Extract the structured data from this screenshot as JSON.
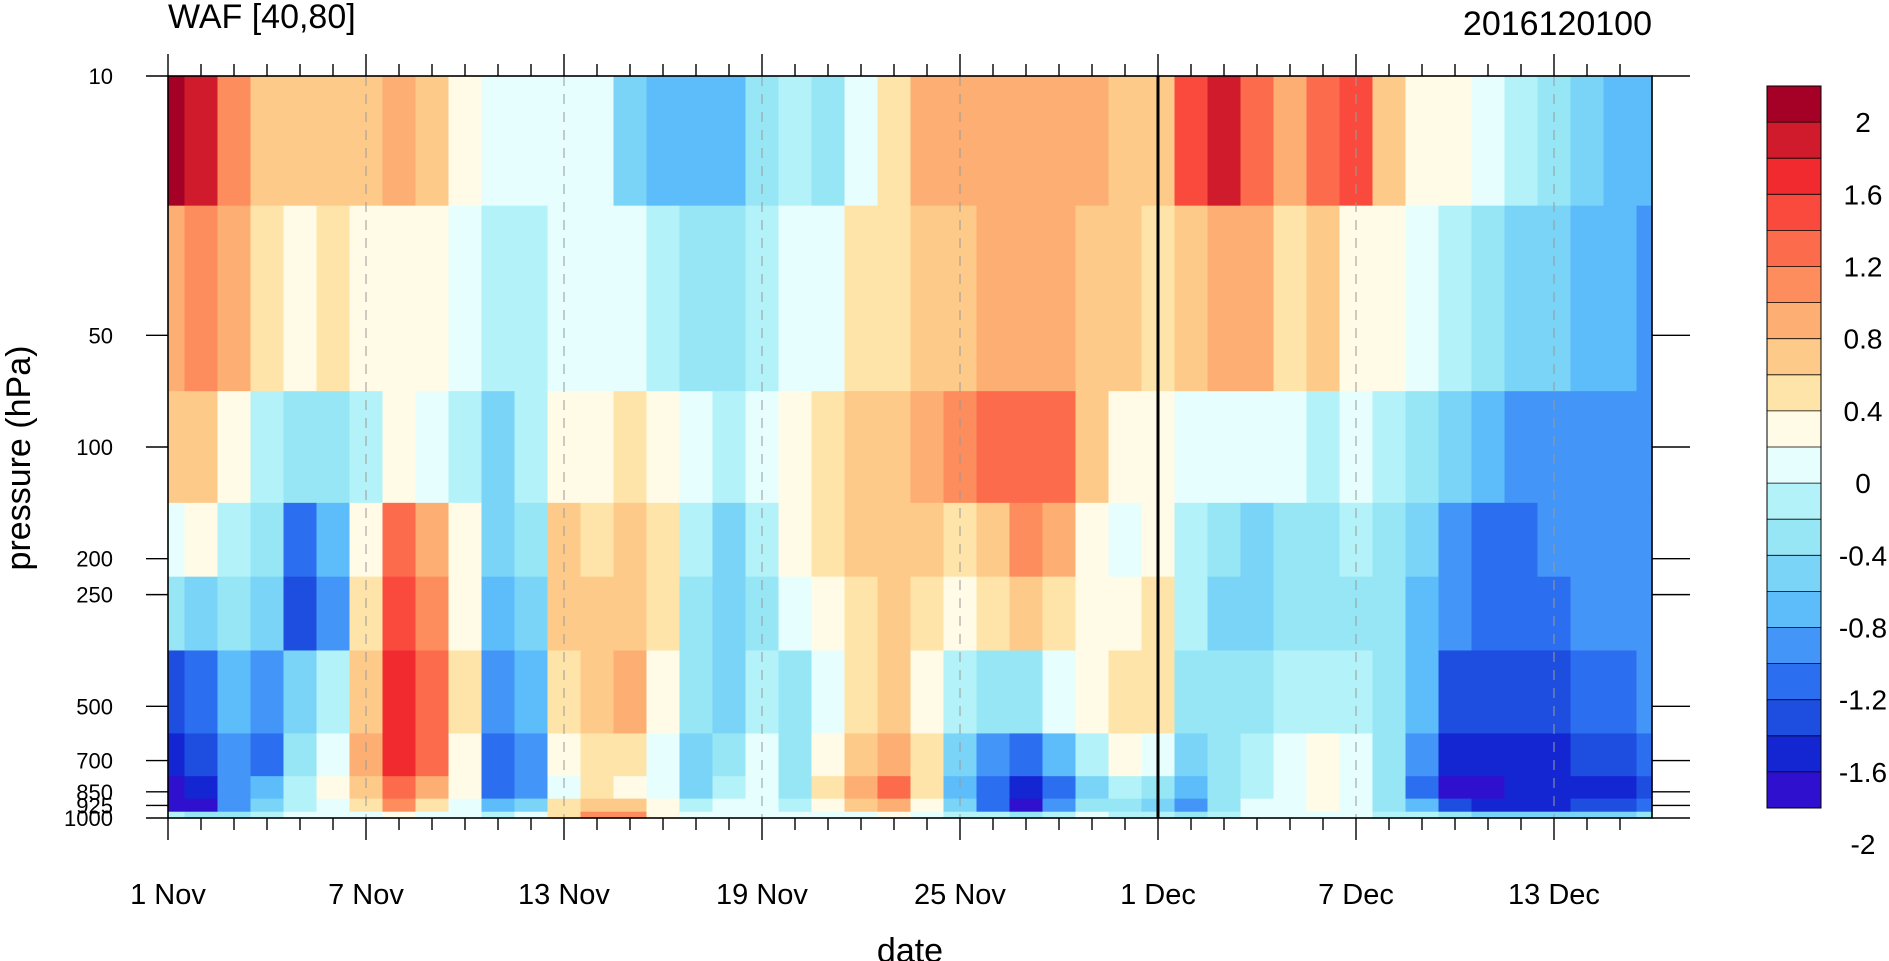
{
  "chart_data": {
    "type": "heatmap",
    "title": "WAF [40,80]",
    "subtitle": "2016120100",
    "xlabel": "date",
    "ylabel": "pressure (hPa)",
    "x_ticks": [
      "1 Nov",
      "7 Nov",
      "13 Nov",
      "19 Nov",
      "25 Nov",
      "1 Dec",
      "7 Dec",
      "13 Dec"
    ],
    "y_ticks": [
      "10",
      "50",
      "100",
      "200",
      "250",
      "500",
      "700",
      "850",
      "925",
      "1000"
    ],
    "y_scale": "log",
    "x_range": [
      "1 Nov",
      "16 Dec"
    ],
    "y_range": [
      1000,
      10
    ],
    "colorbar": {
      "labels": [
        "2",
        "1.6",
        "1.2",
        "0.8",
        "0.4",
        "0",
        "-0.4",
        "-0.8",
        "-1.2",
        "-1.6",
        "-2"
      ],
      "levels": [
        2.2,
        2.0,
        1.8,
        1.6,
        1.4,
        1.2,
        1.0,
        0.8,
        0.6,
        0.4,
        0.2,
        0.0,
        -0.2,
        -0.4,
        -0.6,
        -0.8,
        -1.0,
        -1.2,
        -1.4,
        -1.6,
        -1.8,
        -2.0,
        -2.2
      ],
      "colors": [
        "#a50026",
        "#d01b2c",
        "#f02a2e",
        "#fa4a3e",
        "#fc6b4c",
        "#fd8d5c",
        "#fdae72",
        "#fdca8a",
        "#fee4a8",
        "#fffbe6",
        "#e6fefe",
        "#b2f2f8",
        "#97e6f6",
        "#7ad4f8",
        "#5dbdfb",
        "#4396f8",
        "#2c6ef0",
        "#1d4ee0",
        "#1426d2",
        "#2f10ce"
      ]
    },
    "grid": "dashed vertical at major dates",
    "marker_line": "1 Dec",
    "pressure_levels": [
      10,
      50,
      100,
      200,
      250,
      500,
      700,
      850,
      925,
      1000
    ],
    "dates_step_days": 1,
    "values": [
      [
        2.1,
        0.9,
        0.6,
        0.0,
        -0.4,
        -1.3,
        -1.6,
        -1.7,
        -1.8,
        -0.2
      ],
      [
        1.8,
        1.0,
        0.7,
        0.3,
        -0.5,
        -1.1,
        -1.4,
        -1.5,
        -1.7,
        -0.4
      ],
      [
        1.0,
        0.9,
        0.3,
        -0.1,
        -0.3,
        -0.8,
        -0.9,
        -1.0,
        -0.9,
        -0.3
      ],
      [
        0.7,
        0.4,
        -0.2,
        -0.3,
        -0.5,
        -1.0,
        -1.1,
        -0.8,
        -0.5,
        -0.1
      ],
      [
        0.6,
        0.2,
        -0.3,
        -1.1,
        -1.4,
        -0.6,
        -0.4,
        -0.2,
        -0.1,
        0.0
      ],
      [
        0.7,
        0.4,
        -0.3,
        -0.7,
        -0.9,
        -0.2,
        0.1,
        0.2,
        0.1,
        0.0
      ],
      [
        0.7,
        0.3,
        -0.1,
        0.2,
        0.4,
        0.6,
        0.8,
        0.7,
        0.5,
        0.1
      ],
      [
        0.9,
        0.3,
        0.2,
        1.2,
        1.4,
        1.7,
        1.6,
        1.3,
        1.0,
        0.2
      ],
      [
        0.6,
        0.2,
        0.1,
        0.9,
        1.0,
        1.3,
        1.2,
        0.8,
        0.5,
        0.1
      ],
      [
        0.3,
        0.0,
        -0.1,
        0.2,
        0.3,
        0.4,
        0.3,
        0.2,
        0.1,
        0.0
      ],
      [
        0.0,
        -0.2,
        -0.5,
        -0.6,
        -0.8,
        -0.9,
        -1.1,
        -1.2,
        -0.7,
        -0.2
      ],
      [
        0.0,
        -0.1,
        -0.2,
        -0.4,
        -0.6,
        -0.8,
        -1.0,
        -0.9,
        -0.5,
        0.1
      ],
      [
        0.1,
        0.0,
        0.2,
        0.6,
        0.7,
        0.4,
        0.2,
        0.1,
        0.4,
        0.5
      ],
      [
        0.0,
        0.1,
        0.3,
        0.5,
        0.6,
        0.7,
        0.5,
        0.4,
        0.7,
        1.1
      ],
      [
        -0.5,
        0.1,
        0.4,
        0.6,
        0.7,
        0.8,
        0.5,
        0.3,
        0.6,
        1.0
      ],
      [
        -0.7,
        -0.1,
        0.3,
        0.4,
        0.5,
        0.3,
        0.1,
        0.0,
        0.2,
        0.3
      ],
      [
        -0.8,
        -0.3,
        0.1,
        -0.2,
        -0.3,
        -0.4,
        -0.5,
        -0.6,
        -0.1,
        0.0
      ],
      [
        -0.7,
        -0.3,
        -0.1,
        -0.5,
        -0.6,
        -0.5,
        -0.3,
        -0.2,
        0.0,
        0.1
      ],
      [
        -0.4,
        -0.1,
        0.1,
        -0.2,
        -0.3,
        -0.2,
        0.0,
        0.0,
        0.1,
        0.0
      ],
      [
        -0.2,
        0.1,
        0.3,
        0.2,
        0.0,
        -0.3,
        -0.4,
        -0.3,
        -0.1,
        0.0
      ],
      [
        -0.4,
        0.1,
        0.4,
        0.4,
        0.2,
        0.0,
        0.2,
        0.4,
        0.3,
        0.0
      ],
      [
        0.0,
        0.4,
        0.6,
        0.6,
        0.5,
        0.4,
        0.6,
        0.9,
        0.6,
        0.1
      ],
      [
        0.5,
        0.5,
        0.7,
        0.7,
        0.6,
        0.7,
        0.9,
        1.3,
        0.8,
        0.2
      ],
      [
        0.8,
        0.6,
        0.8,
        0.6,
        0.5,
        0.3,
        0.4,
        0.5,
        0.2,
        0.0
      ],
      [
        0.9,
        0.7,
        1.0,
        0.5,
        0.3,
        -0.2,
        -0.5,
        -0.7,
        -0.6,
        -0.1
      ],
      [
        0.9,
        0.8,
        1.3,
        0.7,
        0.4,
        -0.4,
        -0.9,
        -1.2,
        -1.1,
        -0.2
      ],
      [
        0.9,
        0.9,
        1.3,
        1.0,
        0.6,
        -0.3,
        -1.1,
        -1.6,
        -1.7,
        -0.3
      ],
      [
        0.9,
        0.9,
        1.2,
        0.9,
        0.5,
        0.0,
        -0.8,
        -1.2,
        -1.0,
        -0.2
      ],
      [
        0.8,
        0.7,
        0.6,
        0.3,
        0.2,
        0.2,
        -0.2,
        -0.5,
        -0.4,
        0.0
      ],
      [
        0.7,
        0.6,
        0.3,
        0.1,
        0.3,
        0.4,
        0.2,
        -0.2,
        -0.3,
        -0.1
      ],
      [
        0.7,
        0.5,
        0.2,
        0.2,
        0.5,
        0.5,
        0.1,
        -0.3,
        -0.6,
        -0.2
      ],
      [
        1.5,
        0.7,
        0.1,
        -0.1,
        -0.2,
        -0.3,
        -0.5,
        -0.8,
        -0.9,
        -0.3
      ],
      [
        1.8,
        0.8,
        0.0,
        -0.4,
        -0.5,
        -0.3,
        -0.3,
        -0.4,
        -0.3,
        -0.1
      ],
      [
        1.2,
        0.8,
        0.1,
        -0.6,
        -0.6,
        -0.3,
        -0.1,
        -0.1,
        0.0,
        0.0
      ],
      [
        0.9,
        0.5,
        0.0,
        -0.4,
        -0.4,
        -0.2,
        0.0,
        0.0,
        0.0,
        0.0
      ],
      [
        1.3,
        0.6,
        -0.1,
        -0.3,
        -0.4,
        -0.1,
        0.2,
        0.3,
        0.2,
        0.0
      ],
      [
        1.4,
        0.3,
        0.1,
        -0.2,
        -0.3,
        -0.2,
        0.0,
        0.1,
        0.0,
        0.0
      ],
      [
        0.7,
        0.2,
        -0.1,
        -0.3,
        -0.4,
        -0.3,
        -0.3,
        -0.4,
        -0.3,
        -0.1
      ],
      [
        0.3,
        0.0,
        -0.4,
        -0.6,
        -0.7,
        -0.8,
        -1.0,
        -1.1,
        -0.8,
        -0.2
      ],
      [
        0.2,
        -0.2,
        -0.6,
        -0.9,
        -1.0,
        -1.3,
        -1.6,
        -1.9,
        -1.4,
        -0.4
      ],
      [
        0.0,
        -0.4,
        -0.8,
        -1.1,
        -1.1,
        -1.4,
        -1.6,
        -1.7,
        -1.5,
        -0.5
      ],
      [
        -0.1,
        -0.5,
        -0.9,
        -1.1,
        -1.1,
        -1.3,
        -1.5,
        -1.6,
        -1.5,
        -0.6
      ],
      [
        -0.3,
        -0.6,
        -0.9,
        -1.0,
        -1.1,
        -1.3,
        -1.5,
        -1.6,
        -1.5,
        -0.6
      ],
      [
        -0.5,
        -0.7,
        -0.9,
        -1.0,
        -1.0,
        -1.2,
        -1.4,
        -1.5,
        -1.4,
        -0.6
      ],
      [
        -0.7,
        -0.8,
        -0.9,
        -0.9,
        -0.9,
        -1.1,
        -1.3,
        -1.5,
        -1.3,
        -0.5
      ],
      [
        -0.8,
        -0.9,
        -0.9,
        -0.9,
        -0.9,
        -1.0,
        -1.2,
        -1.4,
        -1.2,
        -0.4
      ]
    ]
  }
}
